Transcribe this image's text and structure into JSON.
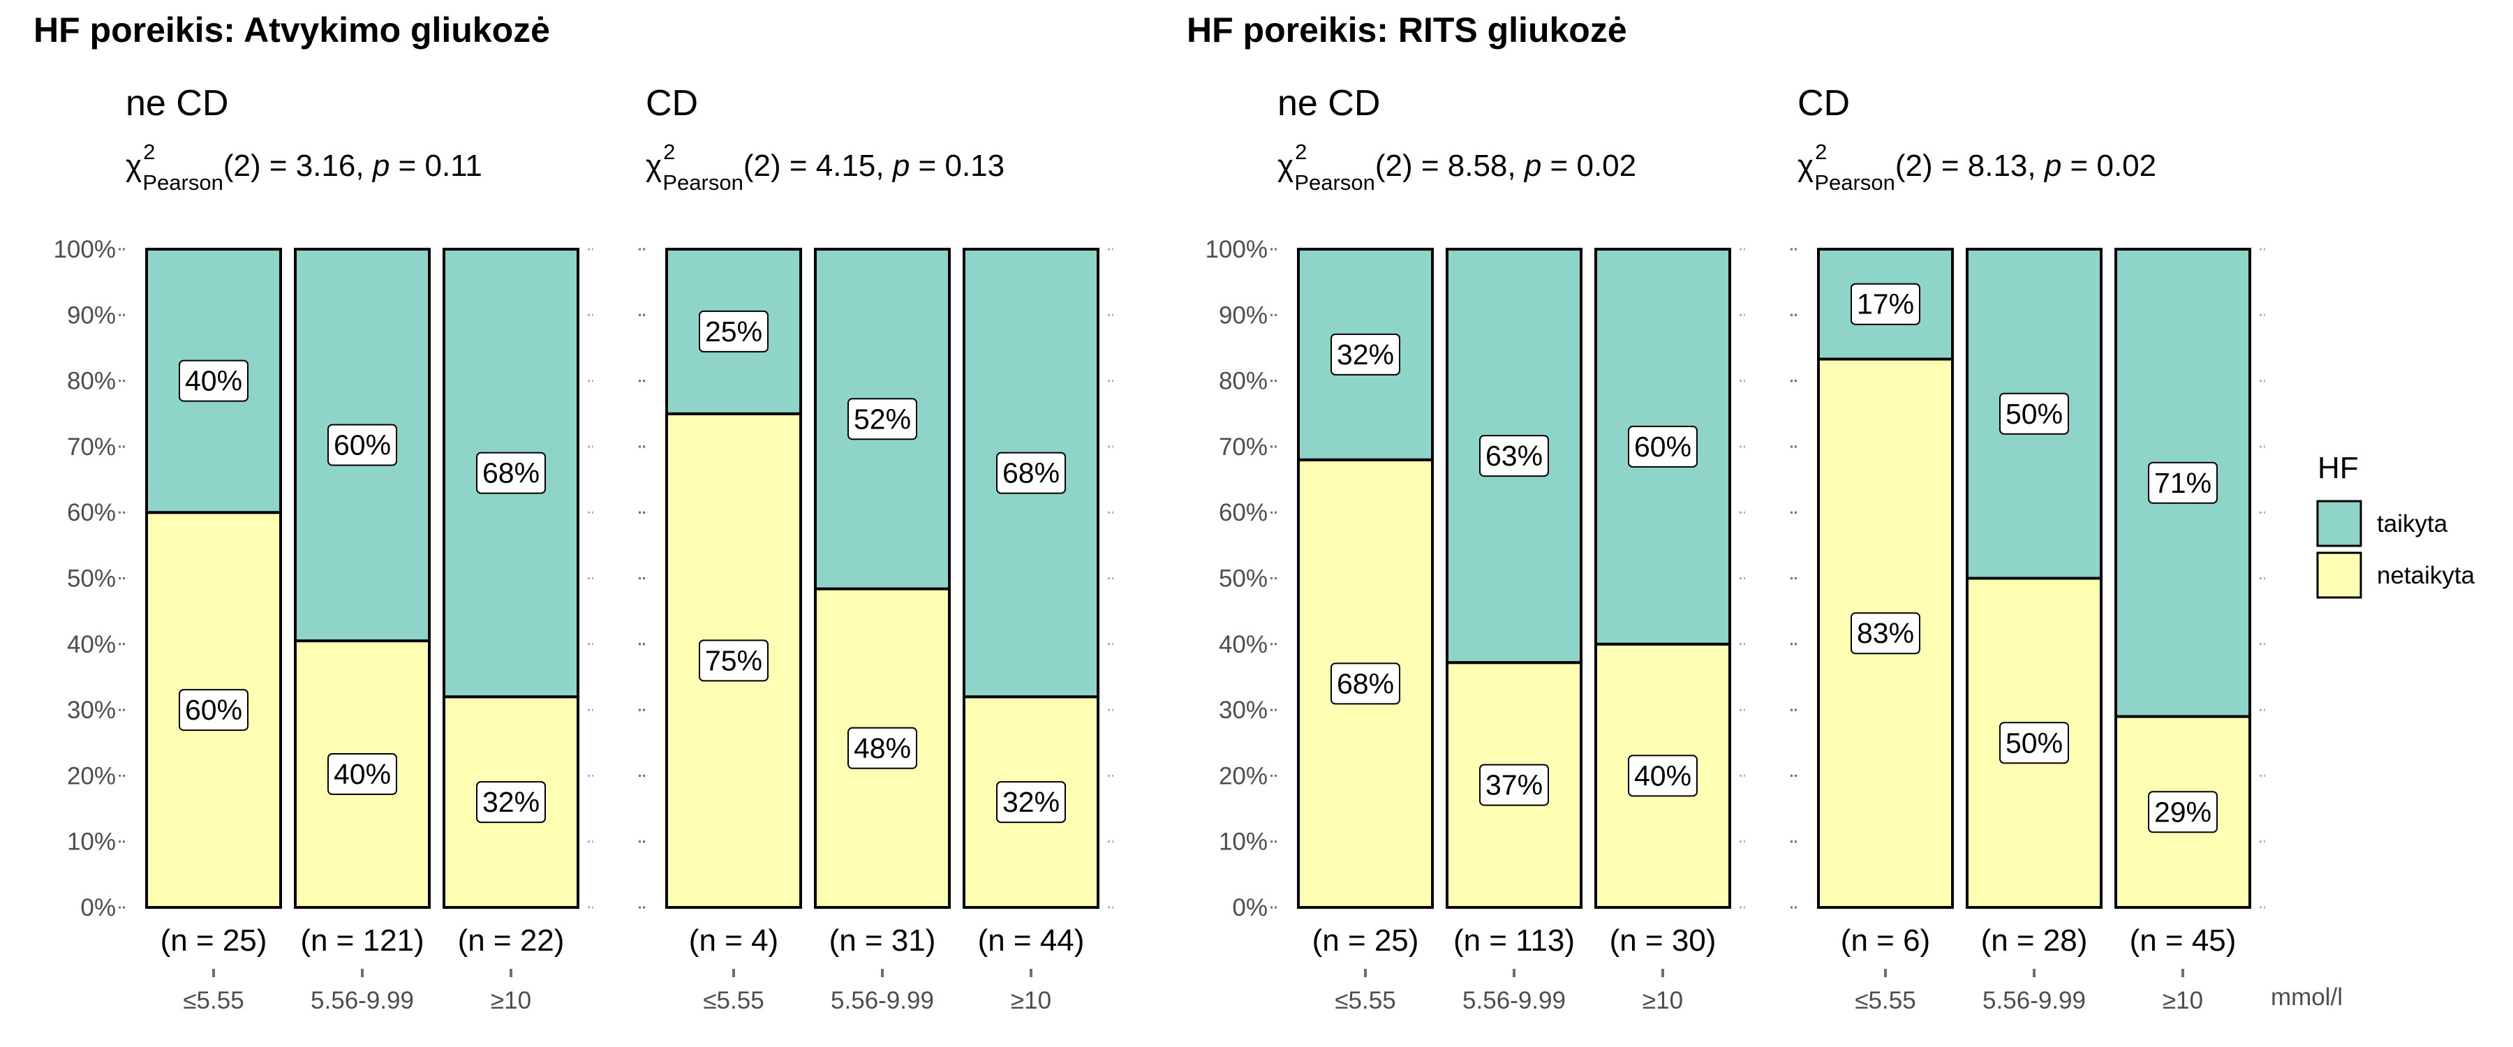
{
  "group_titles": [
    "HF poreikis: Atvykimo gliukozė",
    "HF poreikis: RITS gliukozė"
  ],
  "chart_data": {
    "type": "bar",
    "stacked": true,
    "normalized": true,
    "y_ticks": [
      "0%",
      "10%",
      "20%",
      "30%",
      "40%",
      "50%",
      "60%",
      "70%",
      "80%",
      "90%",
      "100%"
    ],
    "ylim": [
      0,
      100
    ],
    "categories": [
      "≤5.55",
      "5.56-9.99",
      "≥10"
    ],
    "x_unit": "mmol/l",
    "legend": {
      "title": "HF",
      "position": "right",
      "items": [
        {
          "label": "taikyta",
          "color": "#8ED4C8"
        },
        {
          "label": "netaikyta",
          "color": "#FFFFB3"
        }
      ]
    },
    "panels": [
      {
        "title": "ne CD",
        "stat": {
          "chi": "χ",
          "sup": "2",
          "sub": "Pearson",
          "rest_a": "(2) = 3.16, ",
          "p": "p",
          "rest_b": " = 0.11"
        },
        "n_labels": [
          "(n = 25)",
          "(n = 121)",
          "(n = 22)"
        ],
        "series": [
          {
            "name": "netaikyta",
            "values": [
              60,
              40.5,
              32
            ],
            "labels": [
              "60%",
              "40%",
              "32%"
            ]
          },
          {
            "name": "taikyta",
            "values": [
              40,
              59.5,
              68
            ],
            "labels": [
              "40%",
              "60%",
              "68%"
            ]
          }
        ]
      },
      {
        "title": "CD",
        "stat": {
          "chi": "χ",
          "sup": "2",
          "sub": "Pearson",
          "rest_a": "(2) = 4.15, ",
          "p": "p",
          "rest_b": " = 0.13"
        },
        "n_labels": [
          "(n = 4)",
          "(n = 31)",
          "(n = 44)"
        ],
        "series": [
          {
            "name": "netaikyta",
            "values": [
              75,
              48.4,
              32
            ],
            "labels": [
              "75%",
              "48%",
              "32%"
            ]
          },
          {
            "name": "taikyta",
            "values": [
              25,
              51.6,
              68
            ],
            "labels": [
              "25%",
              "52%",
              "68%"
            ]
          }
        ]
      },
      {
        "title": "ne CD",
        "stat": {
          "chi": "χ",
          "sup": "2",
          "sub": "Pearson",
          "rest_a": "(2) = 8.58, ",
          "p": "p",
          "rest_b": " = 0.02"
        },
        "n_labels": [
          "(n = 25)",
          "(n = 113)",
          "(n = 30)"
        ],
        "series": [
          {
            "name": "netaikyta",
            "values": [
              68,
              37.2,
              40
            ],
            "labels": [
              "68%",
              "37%",
              "40%"
            ]
          },
          {
            "name": "taikyta",
            "values": [
              32,
              62.8,
              60
            ],
            "labels": [
              "32%",
              "63%",
              "60%"
            ]
          }
        ]
      },
      {
        "title": "CD",
        "stat": {
          "chi": "χ",
          "sup": "2",
          "sub": "Pearson",
          "rest_a": "(2) = 8.13, ",
          "p": "p",
          "rest_b": " = 0.02"
        },
        "n_labels": [
          "(n = 6)",
          "(n = 28)",
          "(n = 45)"
        ],
        "series": [
          {
            "name": "netaikyta",
            "values": [
              83.3,
              50,
              29
            ],
            "labels": [
              "83%",
              "50%",
              "29%"
            ]
          },
          {
            "name": "taikyta",
            "values": [
              16.7,
              50,
              71
            ],
            "labels": [
              "17%",
              "50%",
              "71%"
            ]
          }
        ]
      }
    ]
  }
}
